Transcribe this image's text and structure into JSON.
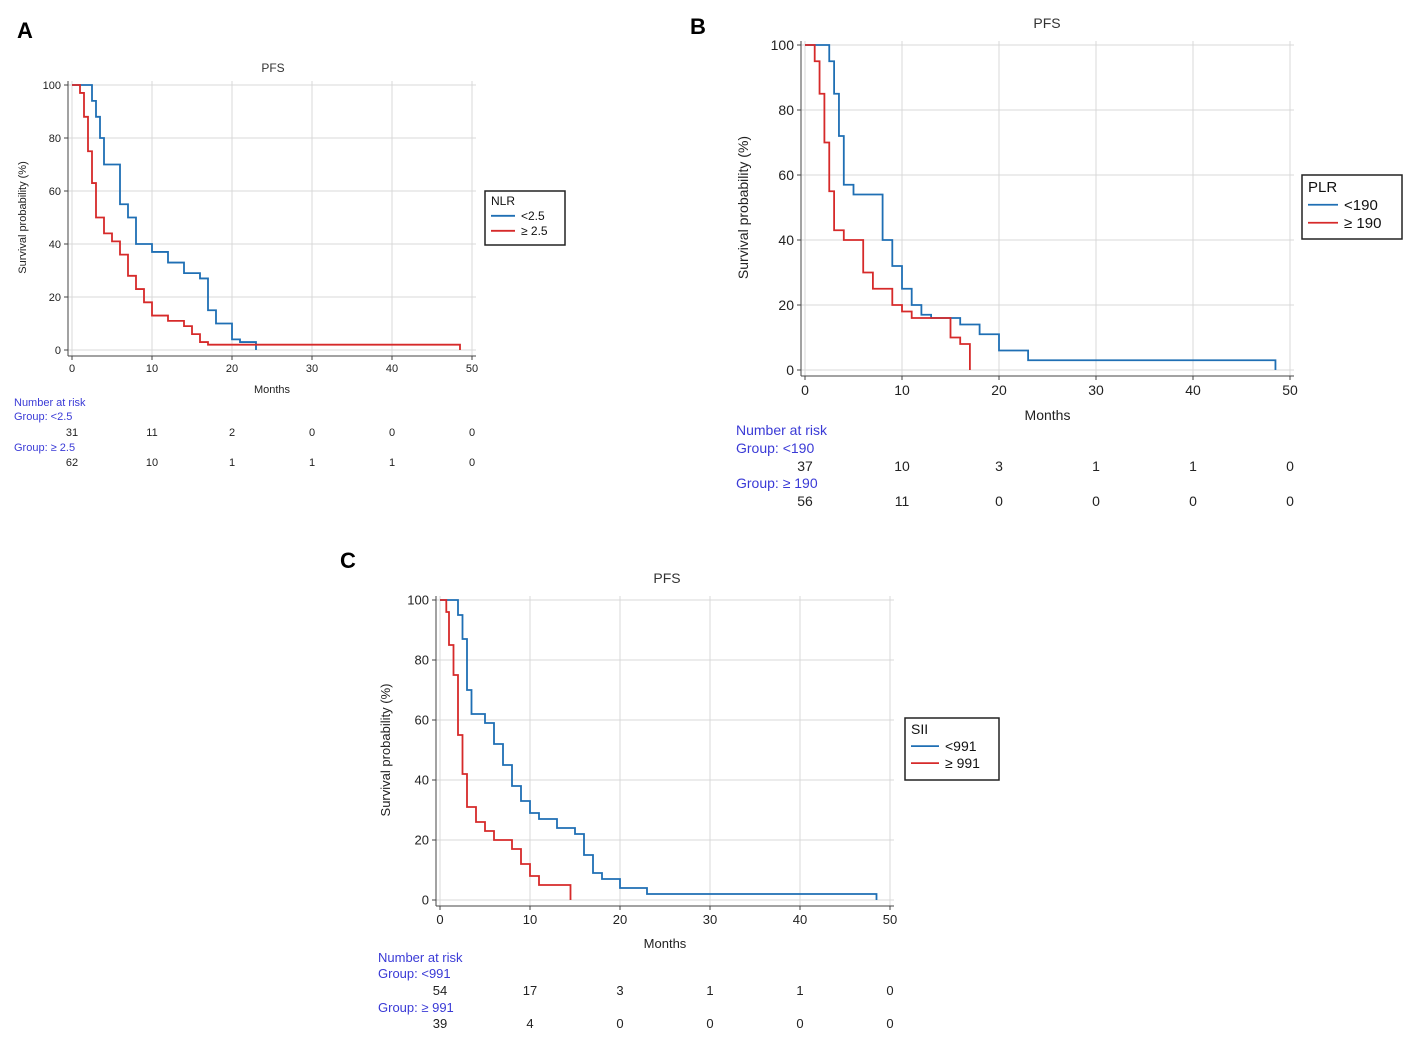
{
  "colors": {
    "blue": "#1f6fb4",
    "red": "#d62a2a",
    "risk_label": "#3a3ad6"
  },
  "chart_data": [
    {
      "panel": "A",
      "type": "line",
      "title": "PFS",
      "xlabel": "Months",
      "ylabel": "Survival probability (%)",
      "xlim": [
        0,
        50
      ],
      "ylim": [
        0,
        100
      ],
      "xticks": [
        0,
        10,
        20,
        30,
        40,
        50
      ],
      "yticks": [
        0,
        20,
        40,
        60,
        80,
        100
      ],
      "legend_title": "NLR",
      "legend_position": "right",
      "series": [
        {
          "name": "<2.5",
          "color": "#1f6fb4",
          "x": [
            0,
            2,
            2.5,
            3,
            3.5,
            4,
            6,
            7,
            8,
            10,
            12,
            14,
            16,
            17,
            18,
            20,
            21,
            23
          ],
          "y": [
            100,
            100,
            94,
            88,
            80,
            70,
            55,
            50,
            40,
            37,
            33,
            29,
            27,
            15,
            10,
            4,
            3,
            0
          ]
        },
        {
          "name": "≥ 2.5",
          "color": "#d62a2a",
          "x": [
            0,
            1,
            1.5,
            2,
            2.5,
            3,
            4,
            5,
            6,
            7,
            8,
            9,
            10,
            12,
            14,
            15,
            16,
            17,
            20,
            48.5
          ],
          "y": [
            100,
            97,
            88,
            75,
            63,
            50,
            44,
            41,
            36,
            28,
            23,
            18,
            13,
            11,
            9,
            6,
            3,
            2,
            2,
            0
          ]
        }
      ],
      "risk_table": {
        "header": "Number at risk",
        "times": [
          0,
          10,
          20,
          30,
          40,
          50
        ],
        "groups": [
          {
            "label": "Group: <2.5",
            "counts": [
              "31",
              "11",
              "2",
              "0",
              "0",
              "0"
            ]
          },
          {
            "label": "Group: ≥ 2.5",
            "counts": [
              "62",
              "10",
              "1",
              "1",
              "1",
              "0"
            ]
          }
        ]
      }
    },
    {
      "panel": "B",
      "type": "line",
      "title": "PFS",
      "xlabel": "Months",
      "ylabel": "Survival probability (%)",
      "xlim": [
        0,
        50
      ],
      "ylim": [
        0,
        100
      ],
      "xticks": [
        0,
        10,
        20,
        30,
        40,
        50
      ],
      "yticks": [
        0,
        20,
        40,
        60,
        80,
        100
      ],
      "legend_title": "PLR",
      "legend_position": "right",
      "series": [
        {
          "name": "<190",
          "color": "#1f6fb4",
          "x": [
            0,
            2,
            2.5,
            3,
            3.5,
            4,
            5,
            7,
            8,
            9,
            10,
            11,
            12,
            13,
            15,
            16,
            18,
            20,
            23,
            48.5
          ],
          "y": [
            100,
            100,
            95,
            85,
            72,
            57,
            54,
            54,
            40,
            32,
            25,
            20,
            17,
            16,
            16,
            14,
            11,
            6,
            3,
            0
          ]
        },
        {
          "name": "≥ 190",
          "color": "#d62a2a",
          "x": [
            0,
            1,
            1.5,
            2,
            2.5,
            3,
            4,
            5,
            6,
            7,
            8,
            9,
            10,
            11,
            14,
            15,
            16,
            17
          ],
          "y": [
            100,
            95,
            85,
            70,
            55,
            43,
            40,
            40,
            30,
            25,
            25,
            20,
            18,
            16,
            16,
            10,
            8,
            0
          ]
        }
      ],
      "risk_table": {
        "header": "Number at risk",
        "times": [
          0,
          10,
          20,
          30,
          40,
          50
        ],
        "groups": [
          {
            "label": "Group: <190",
            "counts": [
              "37",
              "10",
              "3",
              "1",
              "1",
              "0"
            ]
          },
          {
            "label": "Group: ≥ 190",
            "counts": [
              "56",
              "11",
              "0",
              "0",
              "0",
              "0"
            ]
          }
        ]
      }
    },
    {
      "panel": "C",
      "type": "line",
      "title": "PFS",
      "xlabel": "Months",
      "ylabel": "Survival probability (%)",
      "xlim": [
        0,
        50
      ],
      "ylim": [
        0,
        100
      ],
      "xticks": [
        0,
        10,
        20,
        30,
        40,
        50
      ],
      "yticks": [
        0,
        20,
        40,
        60,
        80,
        100
      ],
      "legend_title": "SII",
      "legend_position": "right",
      "series": [
        {
          "name": "<991",
          "color": "#1f6fb4",
          "x": [
            0,
            1.5,
            2,
            2.5,
            3,
            3.5,
            5,
            6,
            7,
            8,
            9,
            10,
            11,
            13,
            15,
            16,
            17,
            18,
            20,
            23,
            48.5
          ],
          "y": [
            100,
            100,
            95,
            87,
            70,
            62,
            59,
            52,
            45,
            38,
            33,
            29,
            27,
            24,
            22,
            15,
            9,
            7,
            4,
            2,
            0
          ]
        },
        {
          "name": "≥ 991",
          "color": "#d62a2a",
          "x": [
            0,
            0.7,
            1,
            1.5,
            2,
            2.5,
            3,
            4,
            5,
            6,
            8,
            9,
            10,
            11,
            14,
            14.5
          ],
          "y": [
            100,
            96,
            85,
            75,
            55,
            42,
            31,
            26,
            23,
            20,
            17,
            12,
            8,
            5,
            5,
            0
          ]
        }
      ],
      "risk_table": {
        "header": "Number at risk",
        "times": [
          0,
          10,
          20,
          30,
          40,
          50
        ],
        "groups": [
          {
            "label": "Group: <991",
            "counts": [
              "54",
              "17",
              "3",
              "1",
              "1",
              "0"
            ]
          },
          {
            "label": "Group: ≥ 991",
            "counts": [
              "39",
              "4",
              "0",
              "0",
              "0",
              "0"
            ]
          }
        ]
      }
    }
  ]
}
